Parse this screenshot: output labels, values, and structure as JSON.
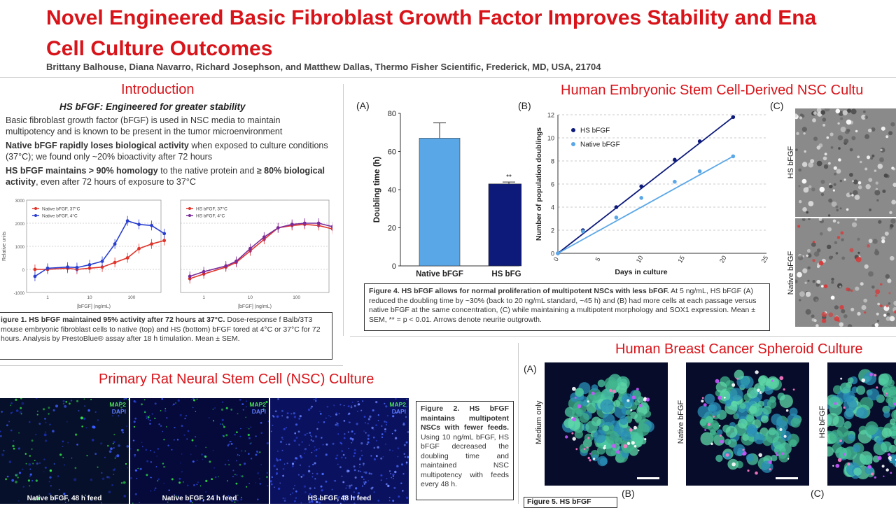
{
  "poster": {
    "title_line1": "Novel Engineered Basic Fibroblast Growth Factor Improves Stability and Ena",
    "title_line2": "Cell Culture Outcomes",
    "authors": "Brittany Balhouse, Diana Navarro, Richard Josephson, and Matthew Dallas, Thermo Fisher Scientific, Frederick, MD, USA, 21704"
  },
  "intro": {
    "heading": "Introduction",
    "subheading": "HS bFGF: Engineered for greater stability",
    "p1": "Basic fibroblast growth factor (bFGF) is used in NSC media to maintain multipotency and is known to be present in the tumor microenvironment",
    "p2_bold": "Native bFGF rapidly loses biological activity",
    "p2_rest": " when exposed to culture conditions (37°C); we found only ~20% bioactivity after 72 hours",
    "p3_bold": "HS bFGF maintains  > 90% homology",
    "p3_mid": " to the native protein and ",
    "p3_bold2": "≥ 80% biological activity",
    "p3_rest": ", even after 72 hours  of exposure to 37°C",
    "fig1_caption_bold": "igure 1. HS bFGF maintained 95% activity after 72 hours at 37°C.",
    "fig1_caption_rest": " Dose-response f Balb/3T3 mouse embryonic fibroblast cells to native (top) and HS (bottom) bFGF tored at 4°C or 37°C for 72 hours. Analysis by PrestoBlue® assay after 18 h timulation. Mean ± SEM."
  },
  "nsc_rat": {
    "heading": "Primary Rat Neural Stem Cell (NSC) Culture",
    "marker1": "MAP2",
    "marker2": "DAPI",
    "images": [
      {
        "label": "Native bFGF, 48 h feed"
      },
      {
        "label": "Native bFGF, 24 h feed"
      },
      {
        "label": "HS bFGF, 48 h feed"
      }
    ],
    "fig2_caption_bold": "Figure 2. HS bFGF maintains multipotent NSCs with fewer feeds.",
    "fig2_caption_rest": " Using 10 ng/mL bFGF, HS bFGF decreased the doubling time and maintained NSC multipotency with feeds every 48 h."
  },
  "hesc": {
    "heading": "Human Embryonic Stem Cell-Derived NSC Cultu",
    "label_a": "(A)",
    "label_b": "(B)",
    "label_c": "(C)",
    "img_labels": [
      "HS bFGF",
      "Native bFGF"
    ],
    "fig4_caption_bold": "Figure 4. HS bFGF allows for normal proliferation of multipotent NSCs with less bFGF.",
    "fig4_caption_rest": " At 5 ng/mL, HS bFGF (A) reduced the doubling time by ~30% (back to 20 ng/mL standard, ~45 h) and (B) had more cells at each passage versus native bFGF at the same concentration, (C) while maintaining a multipotent morphology and SOX1 expression. Mean ± SEM, ** = p < 0.01. Arrows denote neurite outgrowth."
  },
  "breast": {
    "heading": "Human Breast Cancer Spheroid Culture",
    "label_a": "(A)",
    "label_b": "(B)",
    "label_c": "(C)",
    "img_labels": [
      "Medium only",
      "Native bFGF",
      "HS bFGF"
    ],
    "fig5_caption": "Figure 5. HS bFGF"
  },
  "colors": {
    "title_red": "#d8141a",
    "native_light_blue": "#5aa7e8",
    "hs_dark_blue": "#0d1a7a",
    "native_red": "#e0342a",
    "native4_blue": "#2a3fd0",
    "hs37_red": "#e0342a",
    "hs4_purple": "#7a2a9a"
  },
  "chart_data": [
    {
      "type": "scatter",
      "id": "fig1_top",
      "xlabel": "[bFGF] (ng/mL)",
      "ylabel": "Relative units",
      "x_scale": "log",
      "xticks": [
        "1",
        "10",
        "100",
        "1000"
      ],
      "yticks": [
        "-1000",
        "0",
        "1000",
        "2000",
        "3000"
      ],
      "ylim": [
        -1000,
        3000
      ],
      "series": [
        {
          "name": "Native bFGF, 37°C",
          "x": [
            0.5,
            1,
            3,
            5,
            10,
            20,
            40,
            80,
            150,
            300,
            600
          ],
          "y": [
            0,
            0,
            50,
            0,
            50,
            100,
            300,
            500,
            900,
            1100,
            1250
          ]
        },
        {
          "name": "Native bFGF, 4°C",
          "x": [
            0.5,
            1,
            3,
            5,
            10,
            20,
            40,
            80,
            150,
            300,
            600
          ],
          "y": [
            -300,
            50,
            100,
            80,
            200,
            350,
            1100,
            2100,
            1950,
            1900,
            1550
          ]
        }
      ]
    },
    {
      "type": "scatter",
      "id": "fig1_bottom",
      "xlabel": "[bFGF] (ng/mL)",
      "x_scale": "log",
      "xticks": [
        "1",
        "10",
        "100",
        "1000"
      ],
      "yticks": [
        "-1000",
        "0",
        "1000",
        "2000",
        "3000"
      ],
      "ylim": [
        -1000,
        3000
      ],
      "series": [
        {
          "name": "HS bFGF, 37°C",
          "x": [
            0.5,
            1,
            3,
            5,
            10,
            20,
            40,
            80,
            150,
            300,
            600
          ],
          "y": [
            -400,
            -200,
            100,
            300,
            800,
            1300,
            1800,
            1900,
            1950,
            1900,
            1750
          ]
        },
        {
          "name": "HS bFGF, 4°C",
          "x": [
            0.5,
            1,
            3,
            5,
            10,
            20,
            40,
            80,
            150,
            300,
            600
          ],
          "y": [
            -300,
            -100,
            150,
            350,
            900,
            1400,
            1800,
            1950,
            2000,
            2000,
            1850
          ]
        }
      ]
    },
    {
      "type": "bar",
      "id": "fig4a",
      "categories": [
        "Native bFGF",
        "HS bFGF"
      ],
      "values": [
        67,
        43
      ],
      "errors": [
        8,
        1
      ],
      "annotation": "**",
      "ylabel": "Doubling time (h)",
      "yticks": [
        "0",
        "20",
        "40",
        "60",
        "80"
      ],
      "ylim": [
        0,
        80
      ]
    },
    {
      "type": "line",
      "id": "fig4b",
      "xlabel": "Days in culture",
      "ylabel": "Number of population doublings",
      "xticks": [
        "0",
        "5",
        "10",
        "15",
        "20",
        "25"
      ],
      "yticks": [
        "0",
        "2",
        "4",
        "6",
        "8",
        "10",
        "12"
      ],
      "xlim": [
        0,
        25
      ],
      "ylim": [
        0,
        12
      ],
      "series": [
        {
          "name": "HS bFGF",
          "x": [
            0,
            3,
            7,
            10,
            14,
            17,
            21
          ],
          "y": [
            0,
            2,
            4,
            5.8,
            8.1,
            9.7,
            11.8
          ]
        },
        {
          "name": "Native bFGF",
          "x": [
            0,
            3,
            7,
            10,
            14,
            17,
            21
          ],
          "y": [
            0,
            1.9,
            3.1,
            4.8,
            6.2,
            7.1,
            8.4
          ]
        }
      ]
    }
  ]
}
